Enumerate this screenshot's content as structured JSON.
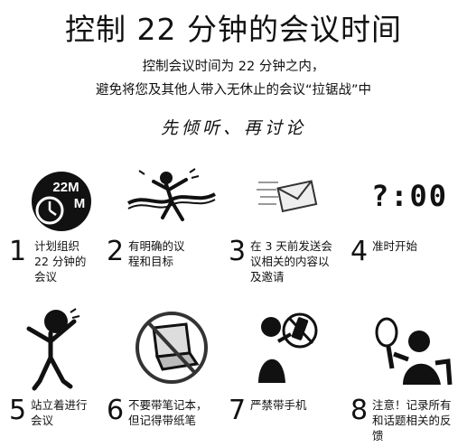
{
  "header": {
    "title": "控制 22 分钟的会议时间",
    "subtitle_line1": "控制会议时间为 22 分钟之内，",
    "subtitle_line2": "避免将您及其他人带入无休止的会议“拉锯战”中",
    "motto": "先倾听、再讨论"
  },
  "clock_badge": {
    "top": "22M",
    "bottom": "M"
  },
  "digital_clock": "?:00",
  "steps": [
    {
      "number": "1",
      "lines": [
        "计划组织",
        "22 分钟的",
        "会议"
      ]
    },
    {
      "number": "2",
      "lines": [
        "有明确的议",
        "程和目标"
      ]
    },
    {
      "number": "3",
      "lines": [
        "在 3 天前发送会",
        "议相关的内容以",
        "及邀请"
      ]
    },
    {
      "number": "4",
      "lines": [
        "准时开始"
      ]
    },
    {
      "number": "5",
      "lines": [
        "站立着进行",
        "会议"
      ]
    },
    {
      "number": "6",
      "lines": [
        "不要带笔记本，",
        "但记得带纸笔"
      ]
    },
    {
      "number": "7",
      "lines": [
        "严禁带手机"
      ]
    },
    {
      "number": "8",
      "lines": [
        "注意！记录所有",
        "和话题相关的反",
        "馈"
      ]
    }
  ]
}
